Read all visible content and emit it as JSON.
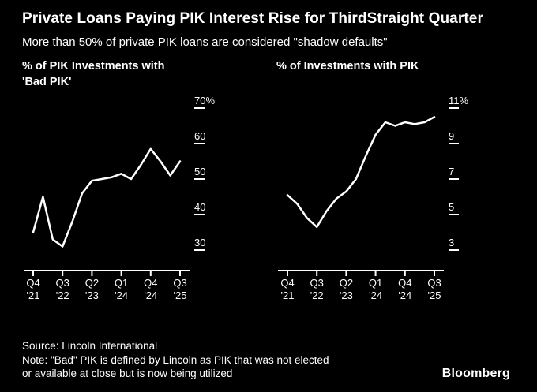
{
  "header": {
    "title_line1": "Private Loans Paying PIK Interest Rise for Third",
    "title_line2": "Straight Quarter",
    "subtitle": "More than 50% of private PIK loans are considered \"shadow defaults\""
  },
  "chart_data": [
    {
      "type": "line",
      "title": "% of PIK Investments with 'Bad PIK'",
      "title_line1": "% of PIK Investments with",
      "title_line2": "'Bad PIK'",
      "x": [
        "Q4 '21",
        "Q1 '22",
        "Q2 '22",
        "Q3 '22",
        "Q4 '22",
        "Q1 '23",
        "Q2 '23",
        "Q3 '23",
        "Q4 '23",
        "Q1 '24",
        "Q2 '24",
        "Q3 '24",
        "Q4 '24",
        "Q1 '25",
        "Q2 '25",
        "Q3 '25"
      ],
      "values": [
        35,
        45,
        33,
        31,
        38,
        46,
        49.5,
        50,
        50.5,
        51.5,
        50,
        54,
        58.5,
        55,
        51,
        55
      ],
      "ylabel": "% of PIK investments with 'Bad PIK'",
      "ylim": [
        30,
        70
      ],
      "yticks": [
        "70%",
        "60",
        "50",
        "40",
        "30"
      ],
      "ytick_values": [
        70,
        60,
        50,
        40,
        30
      ],
      "xtick_indices": [
        0,
        3,
        6,
        9,
        12,
        15
      ],
      "xtick_labels_top": [
        "Q4",
        "Q3",
        "Q2",
        "Q1",
        "Q4",
        "Q3"
      ],
      "xtick_labels_bottom": [
        "'21",
        "'22",
        "'23",
        "'24",
        "'24",
        "'25"
      ],
      "grid": "off",
      "legend": "none",
      "line_color": "#ffffff"
    },
    {
      "type": "line",
      "title": "% of Investments with PIK",
      "title_line1": "% of Investments with PIK",
      "title_line2": "",
      "x": [
        "Q4 '21",
        "Q1 '22",
        "Q2 '22",
        "Q3 '22",
        "Q4 '22",
        "Q1 '23",
        "Q2 '23",
        "Q3 '23",
        "Q4 '23",
        "Q1 '24",
        "Q2 '24",
        "Q3 '24",
        "Q4 '24",
        "Q1 '25",
        "Q2 '25",
        "Q3 '25"
      ],
      "values": [
        6.1,
        5.6,
        4.8,
        4.3,
        5.2,
        5.9,
        6.3,
        7.0,
        8.3,
        9.5,
        10.2,
        10.0,
        10.2,
        10.1,
        10.2,
        10.5
      ],
      "ylabel": "% of investments with PIK",
      "ylim": [
        3,
        11
      ],
      "yticks": [
        "11%",
        "9",
        "7",
        "5",
        "3"
      ],
      "ytick_values": [
        11,
        9,
        7,
        5,
        3
      ],
      "xtick_indices": [
        0,
        3,
        6,
        9,
        12,
        15
      ],
      "xtick_labels_top": [
        "Q4",
        "Q3",
        "Q2",
        "Q1",
        "Q4",
        "Q3"
      ],
      "xtick_labels_bottom": [
        "'21",
        "'22",
        "'23",
        "'24",
        "'24",
        "'25"
      ],
      "grid": "off",
      "legend": "none",
      "line_color": "#ffffff"
    }
  ],
  "footer": {
    "source": "Source: Lincoln International",
    "note_line1": "Note: \"Bad\" PIK is defined by Lincoln as PIK that was not elected",
    "note_line2": "or available at close but is now being utilized",
    "brand": "Bloomberg"
  }
}
